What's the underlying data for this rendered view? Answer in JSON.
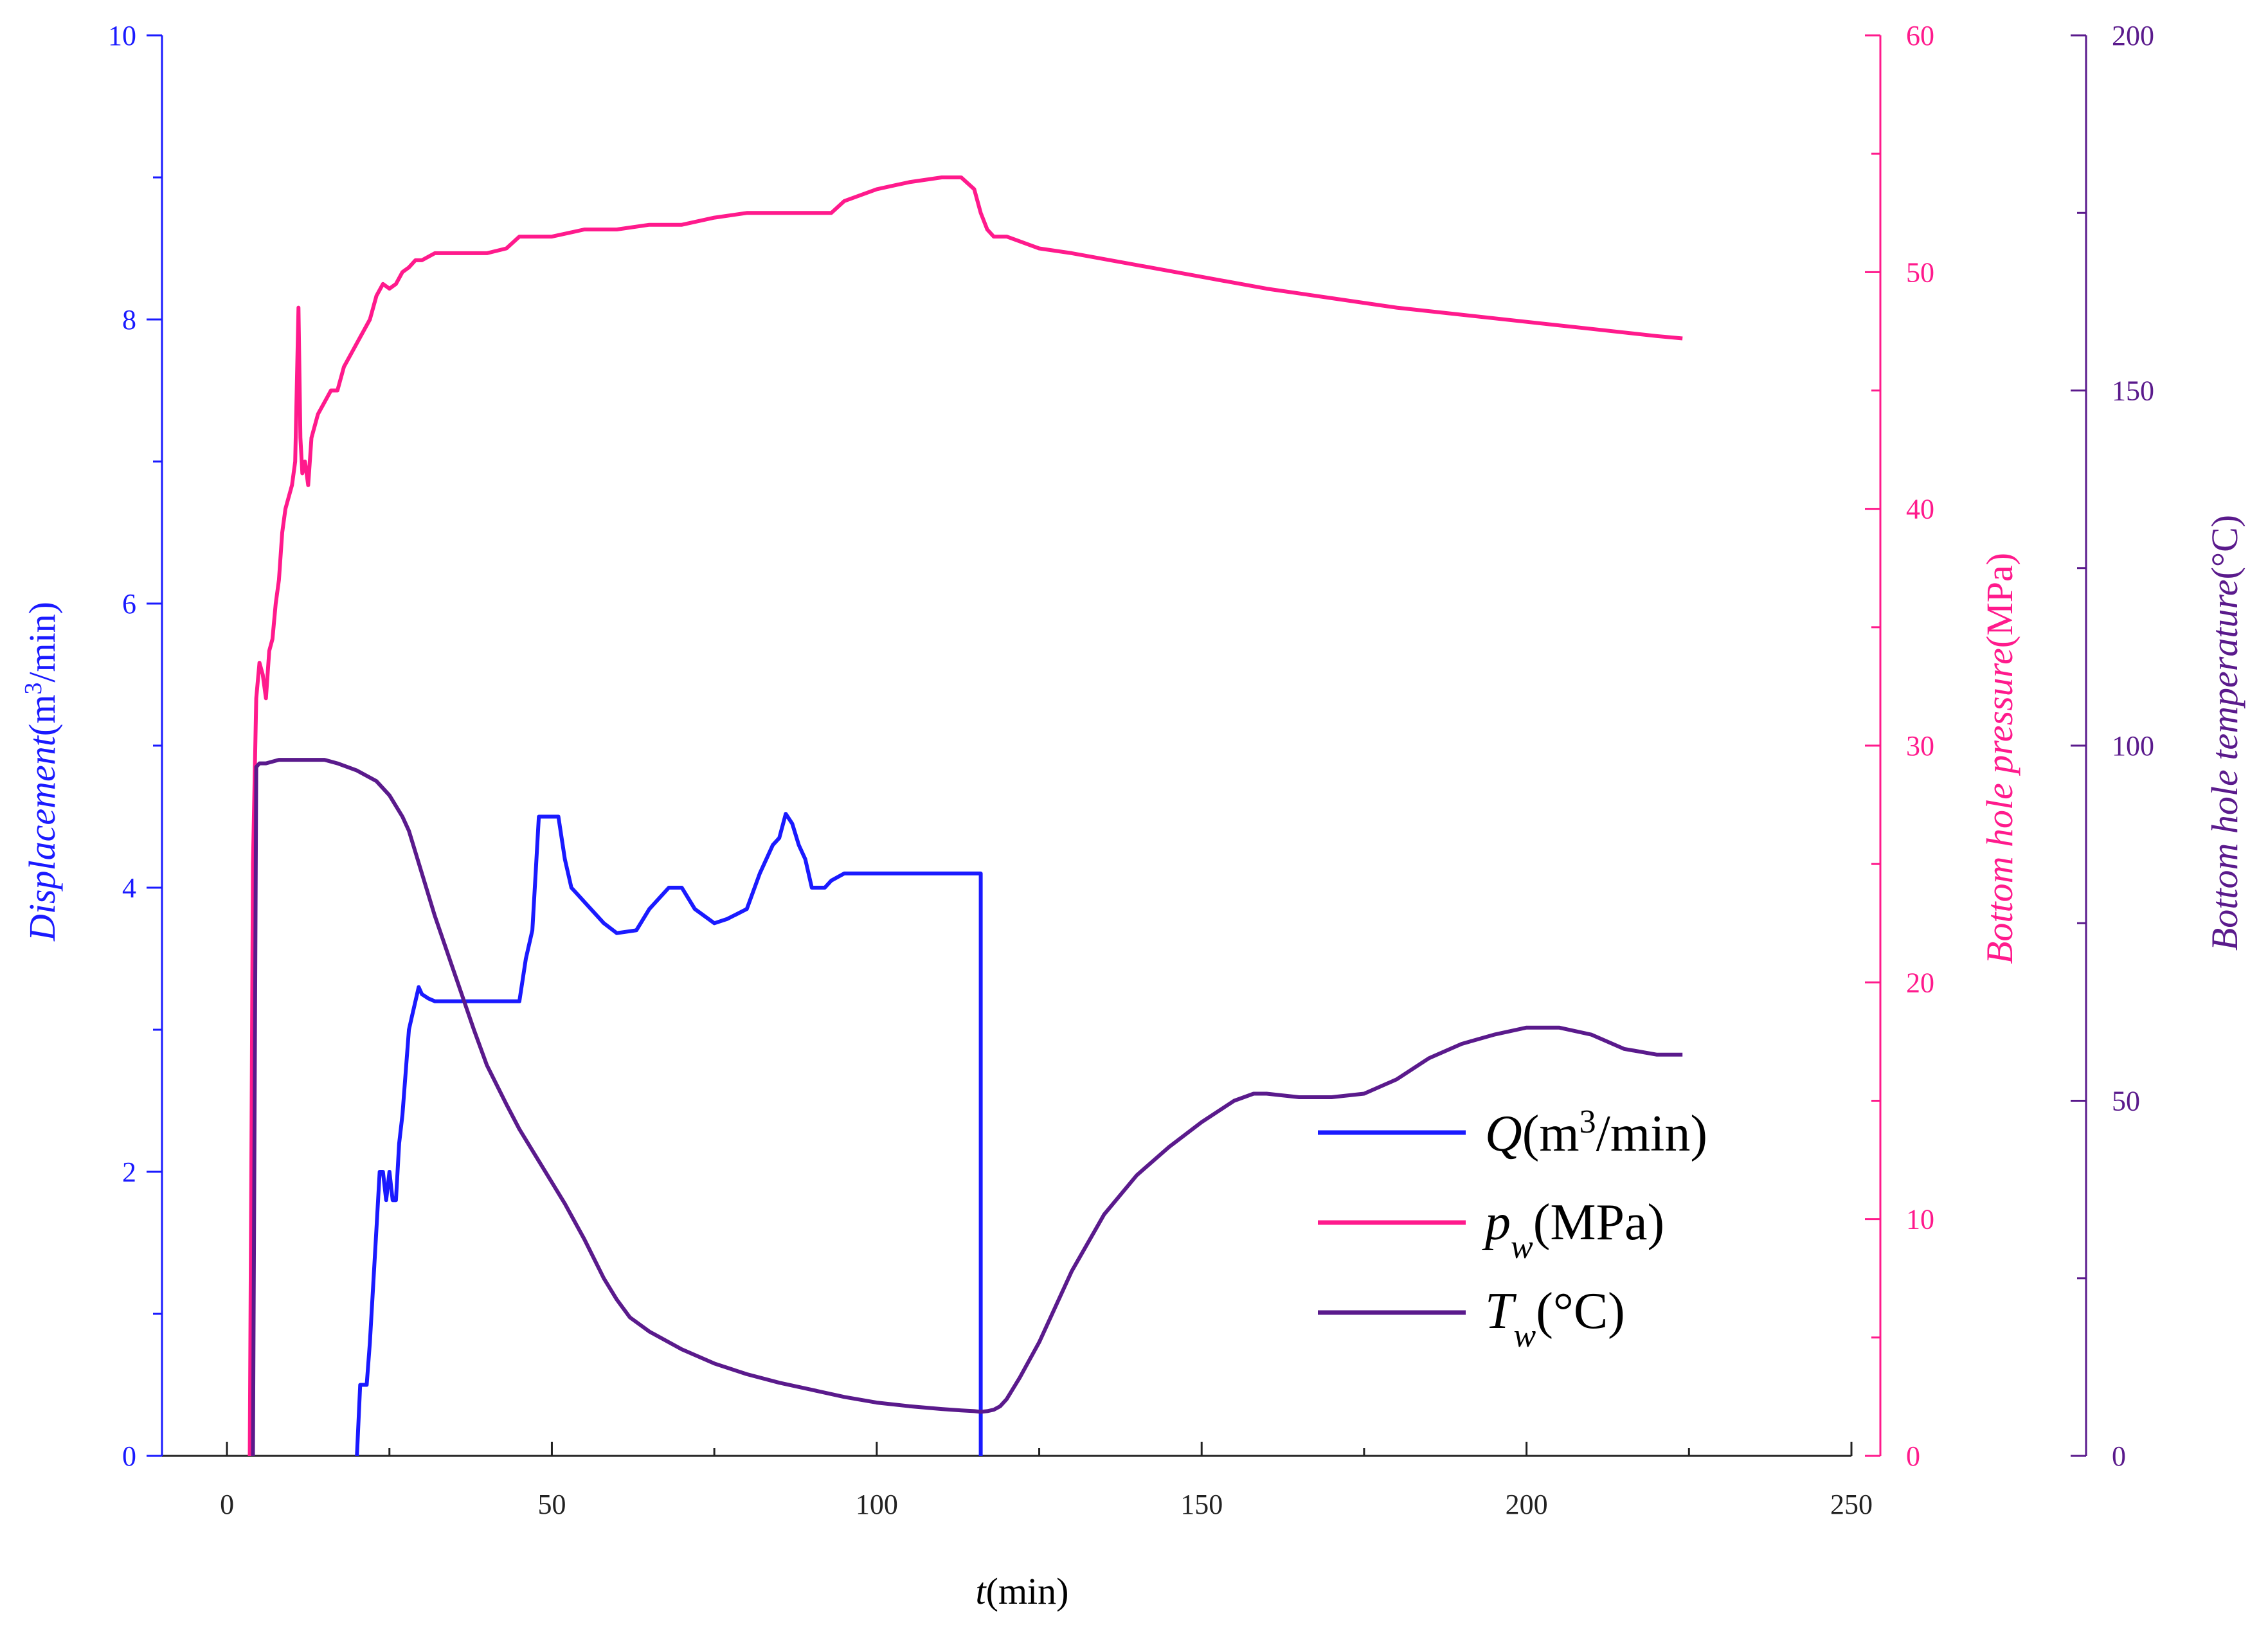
{
  "chart_data": {
    "type": "line",
    "colors": {
      "q": "#1a1aff",
      "p": "#ff1a8c",
      "t": "#5a1a8c",
      "x": "#222222"
    },
    "x": {
      "label_italic": "t",
      "label_rest": "(min)",
      "range": [
        -10,
        250
      ],
      "ticks": [
        "0",
        "50",
        "100",
        "150",
        "200",
        "250"
      ],
      "tick_values": [
        0,
        50,
        100,
        150,
        200,
        250
      ]
    },
    "y_left": {
      "label_italic": "Displacement",
      "label_rest_a": "(m",
      "label_sup": "3",
      "label_rest_b": "/min)",
      "range": [
        0,
        10
      ],
      "ticks": [
        "0",
        "2",
        "4",
        "6",
        "8",
        "10"
      ],
      "tick_values": [
        0,
        2,
        4,
        6,
        8,
        10
      ]
    },
    "y_right1": {
      "label_italic": "Bottom hole pressure",
      "label_rest": "(MPa)",
      "range": [
        0,
        60
      ],
      "ticks": [
        "0",
        "10",
        "20",
        "30",
        "40",
        "50",
        "60"
      ],
      "tick_values": [
        0,
        10,
        20,
        30,
        40,
        50,
        60
      ]
    },
    "y_right2": {
      "label_italic": "Bottom hole temperature",
      "label_rest": "(°C)",
      "range": [
        0,
        200
      ],
      "ticks": [
        "0",
        "50",
        "100",
        "150",
        "200"
      ],
      "tick_values": [
        0,
        50,
        100,
        150,
        200
      ]
    },
    "legend": {
      "position": "bottom-right",
      "q_italic": "Q",
      "q_rest_a": "(m",
      "q_sup": "3",
      "q_rest_b": "/min)",
      "p_italic": "p",
      "p_sub": "w",
      "p_rest": "(MPa)",
      "t_italic": "T",
      "t_sub": "w",
      "t_rest": "(°C)"
    },
    "series": [
      {
        "name": "Q(m3/min)",
        "axis": "left",
        "x": [
          20,
          20.5,
          21,
          21.5,
          22,
          22.5,
          23,
          23.5,
          24,
          24.5,
          25,
          25.5,
          26,
          26.5,
          27,
          28,
          28.5,
          29,
          29.5,
          30,
          31,
          32,
          33,
          35,
          40,
          45,
          46,
          47,
          47.5,
          48,
          50,
          51,
          52,
          53,
          54,
          55,
          58,
          60,
          63,
          65,
          68,
          70,
          72,
          75,
          77,
          80,
          82,
          84,
          85,
          86,
          87,
          88,
          89,
          90,
          92,
          93,
          95,
          100,
          105,
          110,
          116,
          116
        ],
        "values": [
          0,
          0.5,
          0.5,
          0.5,
          0.8,
          1.2,
          1.6,
          2,
          2,
          1.8,
          2,
          1.8,
          1.8,
          2.2,
          2.4,
          3,
          3.1,
          3.2,
          3.3,
          3.25,
          3.22,
          3.2,
          3.2,
          3.2,
          3.2,
          3.2,
          3.5,
          3.7,
          4.1,
          4.5,
          4.5,
          4.5,
          4.2,
          4.0,
          3.95,
          3.9,
          3.75,
          3.68,
          3.7,
          3.85,
          4.0,
          4.0,
          3.85,
          3.75,
          3.78,
          3.85,
          4.1,
          4.3,
          4.35,
          4.52,
          4.45,
          4.3,
          4.2,
          4.0,
          4.0,
          4.05,
          4.1,
          4.1,
          4.1,
          4.1,
          4.1,
          0
        ]
      },
      {
        "name": "pw(MPa)",
        "axis": "right1",
        "x": [
          3.5,
          4,
          4.5,
          5,
          5.5,
          6,
          6.5,
          7,
          7.5,
          8,
          8.5,
          9,
          10,
          10.5,
          11,
          11.3,
          11.6,
          12,
          12.5,
          13,
          14,
          15,
          16,
          17,
          18,
          19,
          20,
          22,
          23,
          24,
          25,
          26,
          27,
          28,
          29,
          30,
          32,
          33,
          35,
          40,
          43,
          45,
          47,
          50,
          55,
          60,
          65,
          70,
          75,
          80,
          85,
          90,
          93,
          95,
          100,
          105,
          110,
          113,
          115,
          116,
          117,
          118,
          120,
          125,
          130,
          140,
          150,
          160,
          170,
          180,
          190,
          200,
          210,
          220,
          224
        ],
        "values": [
          0,
          25,
          32,
          33.5,
          33,
          32,
          34,
          34.5,
          36,
          37,
          39,
          40,
          41,
          42,
          48.5,
          43,
          41.5,
          42,
          41,
          43,
          44,
          44.5,
          45,
          45,
          46,
          46.5,
          47,
          48,
          49,
          49.5,
          49.3,
          49.5,
          50,
          50.2,
          50.5,
          50.5,
          50.8,
          50.8,
          50.8,
          50.8,
          51,
          51.5,
          51.5,
          51.5,
          51.8,
          51.8,
          52,
          52,
          52.3,
          52.5,
          52.5,
          52.5,
          52.5,
          53,
          53.5,
          53.8,
          54,
          54,
          53.5,
          52.5,
          51.8,
          51.5,
          51.5,
          51,
          50.8,
          50.3,
          49.8,
          49.3,
          48.9,
          48.5,
          48.2,
          47.9,
          47.6,
          47.3,
          47.2
        ]
      },
      {
        "name": "Tw(°C)",
        "axis": "right2",
        "x": [
          4,
          4.5,
          5,
          6,
          8,
          10,
          12,
          15,
          17,
          20,
          23,
          25,
          27,
          28,
          30,
          32,
          35,
          38,
          40,
          43,
          45,
          47,
          50,
          52,
          55,
          58,
          60,
          62,
          65,
          70,
          75,
          80,
          85,
          90,
          95,
          100,
          105,
          110,
          113,
          115,
          116,
          117,
          118,
          119,
          120,
          122,
          125,
          128,
          130,
          135,
          140,
          145,
          150,
          155,
          158,
          160,
          165,
          170,
          175,
          180,
          185,
          190,
          195,
          200,
          205,
          210,
          215,
          220,
          224
        ],
        "values": [
          0,
          97,
          97.5,
          97.5,
          98,
          98,
          98,
          98,
          97.5,
          96.5,
          95,
          93,
          90,
          88,
          82,
          76,
          68,
          60,
          55,
          49.5,
          46,
          43,
          38.5,
          35.5,
          30.5,
          25,
          22,
          19.5,
          17.5,
          15,
          13,
          11.5,
          10.3,
          9.3,
          8.3,
          7.5,
          7,
          6.6,
          6.4,
          6.3,
          6.2,
          6.3,
          6.5,
          7,
          8,
          11,
          16,
          22,
          26,
          34,
          39.5,
          43.5,
          47,
          50,
          51,
          51,
          50.5,
          50.5,
          51,
          53,
          56,
          58,
          59.3,
          60.3,
          60.3,
          59.3,
          57.3,
          56.5,
          56.5
        ]
      }
    ]
  }
}
